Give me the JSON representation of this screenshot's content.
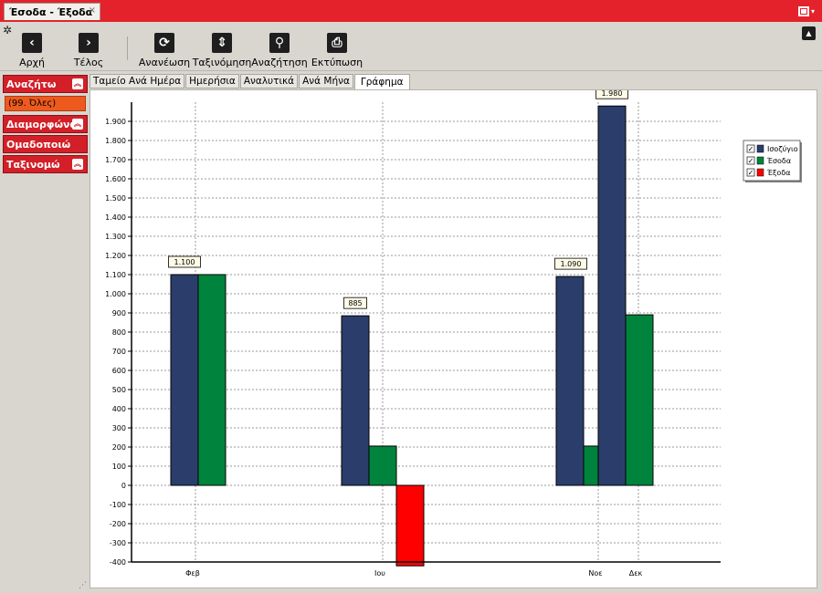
{
  "window": {
    "tab_title": "Έσοδα - Έξοδα",
    "tab_close": "×"
  },
  "toolbar": {
    "settings_icon": "gear-icon",
    "buttons": [
      {
        "label": "Αρχή",
        "icon": "chevron-left-icon",
        "glyph": "‹"
      },
      {
        "label": "Τέλος",
        "icon": "chevron-right-icon",
        "glyph": "›"
      },
      {
        "label": "Ανανέωση",
        "icon": "refresh-icon",
        "glyph": "⟳"
      },
      {
        "label": "Ταξινόμηση",
        "icon": "sort-icon",
        "glyph": "⇕"
      },
      {
        "label": "Αναζήτηση",
        "icon": "search-icon",
        "glyph": "⚲"
      },
      {
        "label": "Εκτύπωση",
        "icon": "print-icon",
        "glyph": "⎙"
      }
    ]
  },
  "sidebar": {
    "search": {
      "label": "Αναζήτω",
      "filter_value": "(99. Όλες)"
    },
    "format": {
      "label": "Διαμορφώνω"
    },
    "group": {
      "label": "Ομαδοποιώ"
    },
    "sort": {
      "label": "Ταξινομώ"
    }
  },
  "view_tabs": [
    "Ταμείο Ανά Ημέρα",
    "Ημερήσια",
    "Αναλυτικά",
    "Ανά Μήνα",
    "Γράφημα"
  ],
  "active_view_tab": "Γράφημα",
  "chart_data": {
    "type": "bar",
    "title": "",
    "xlabel": "",
    "ylabel": "",
    "ylim": [
      -400,
      2000
    ],
    "yticks": [
      1900,
      1800,
      1700,
      1600,
      1500,
      1400,
      1300,
      1200,
      1100,
      1000,
      900,
      800,
      700,
      600,
      500,
      400,
      300,
      200,
      100,
      0,
      -100,
      -200,
      -300,
      -400
    ],
    "ytick_labels": [
      "1.900",
      "1.800",
      "1.700",
      "1.600",
      "1.500",
      "1.400",
      "1.300",
      "1.200",
      "1.100",
      "1.000",
      "900",
      "800",
      "700",
      "600",
      "500",
      "400",
      "300",
      "200",
      "100",
      "0",
      "-100",
      "-200",
      "-300",
      "-400"
    ],
    "categories": [
      "Φεβ",
      "Ιου",
      "Νοε",
      "Δεκ"
    ],
    "series": [
      {
        "name": "Ισοζύγιο",
        "color": "#2b3e6b",
        "values": [
          1100,
          885,
          1090,
          1980
        ]
      },
      {
        "name": "Έσοδα",
        "color": "#00843d",
        "values": [
          1100,
          205,
          205,
          890
        ]
      },
      {
        "name": "Έξοδα",
        "color": "#ff0000",
        "values": [
          0,
          -420,
          0,
          0
        ]
      }
    ],
    "data_labels": [
      {
        "series": "Ισοζύγιο",
        "category": "Φεβ",
        "text": "1.100"
      },
      {
        "series": "Ισοζύγιο",
        "category": "Ιου",
        "text": "885"
      },
      {
        "series": "Ισοζύγιο",
        "category": "Νοε",
        "text": "1.090"
      },
      {
        "series": "Ισοζύγιο",
        "category": "Δεκ",
        "text": "1.980"
      }
    ],
    "grid": true,
    "legend": {
      "position": "top-right",
      "checked": [
        true,
        true,
        true
      ]
    }
  }
}
